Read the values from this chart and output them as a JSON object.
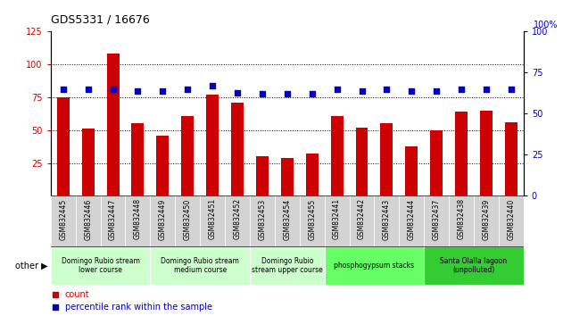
{
  "title": "GDS5331 / 16676",
  "samples": [
    "GSM832445",
    "GSM832446",
    "GSM832447",
    "GSM832448",
    "GSM832449",
    "GSM832450",
    "GSM832451",
    "GSM832452",
    "GSM832453",
    "GSM832454",
    "GSM832455",
    "GSM832441",
    "GSM832442",
    "GSM832443",
    "GSM832444",
    "GSM832437",
    "GSM832438",
    "GSM832439",
    "GSM832440"
  ],
  "counts": [
    75,
    51,
    108,
    55,
    46,
    61,
    77,
    71,
    30,
    29,
    32,
    61,
    52,
    55,
    38,
    50,
    64,
    65,
    56
  ],
  "percentiles": [
    65,
    65,
    65,
    64,
    64,
    65,
    67,
    63,
    62,
    62,
    62,
    65,
    64,
    65,
    64,
    64,
    65,
    65,
    65
  ],
  "bar_color": "#cc0000",
  "dot_color": "#0000cc",
  "ylim_left": [
    0,
    125
  ],
  "ylim_right": [
    0,
    100
  ],
  "yticks_left": [
    25,
    50,
    75,
    100,
    125
  ],
  "yticks_right": [
    0,
    25,
    50,
    75,
    100
  ],
  "groups": [
    {
      "label": "Domingo Rubio stream\nlower course",
      "start": 0,
      "end": 4,
      "color": "#ccffcc"
    },
    {
      "label": "Domingo Rubio stream\nmedium course",
      "start": 4,
      "end": 8,
      "color": "#ccffcc"
    },
    {
      "label": "Domingo Rubio\nstream upper course",
      "start": 8,
      "end": 11,
      "color": "#ccffcc"
    },
    {
      "label": "phosphogypsum stacks",
      "start": 11,
      "end": 15,
      "color": "#66ff66"
    },
    {
      "label": "Santa Olalla lagoon\n(unpolluted)",
      "start": 15,
      "end": 19,
      "color": "#33cc33"
    }
  ],
  "dotgrid_yticks": [
    25,
    50,
    75,
    100
  ],
  "bar_width": 0.5,
  "tick_label_fontsize": 5.5,
  "title_fontsize": 9
}
